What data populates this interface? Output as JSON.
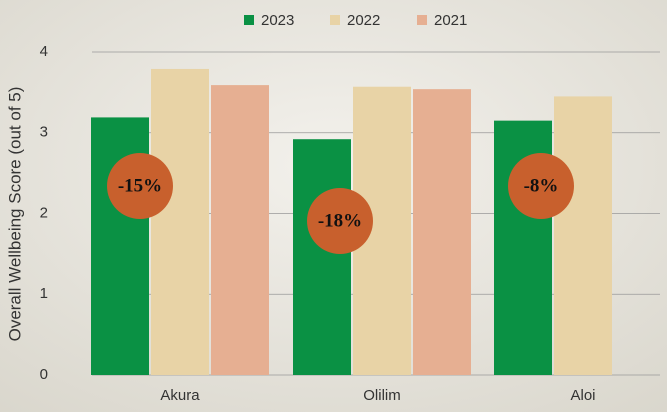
{
  "chart_data": {
    "type": "bar",
    "y_label": "Overall Wellbeing Score (out of 5)",
    "categories": [
      "Akura",
      "Olilim",
      "Aloi"
    ],
    "series": [
      {
        "name": "2023",
        "color": "#0a9144",
        "values": [
          3.19,
          2.92,
          3.15
        ]
      },
      {
        "name": "2022",
        "color": "#e8d3a6",
        "values": [
          3.79,
          3.57,
          3.45
        ]
      },
      {
        "name": "2021",
        "color": "#e6af92",
        "values": [
          3.59,
          3.54,
          null
        ]
      }
    ],
    "annotations": [
      "-15%",
      "-18%",
      "-8%"
    ],
    "annotation_color": "#c8602d",
    "ylim": [
      0,
      4
    ],
    "yticks": [
      0,
      1,
      2,
      3,
      4
    ],
    "grid": true
  }
}
